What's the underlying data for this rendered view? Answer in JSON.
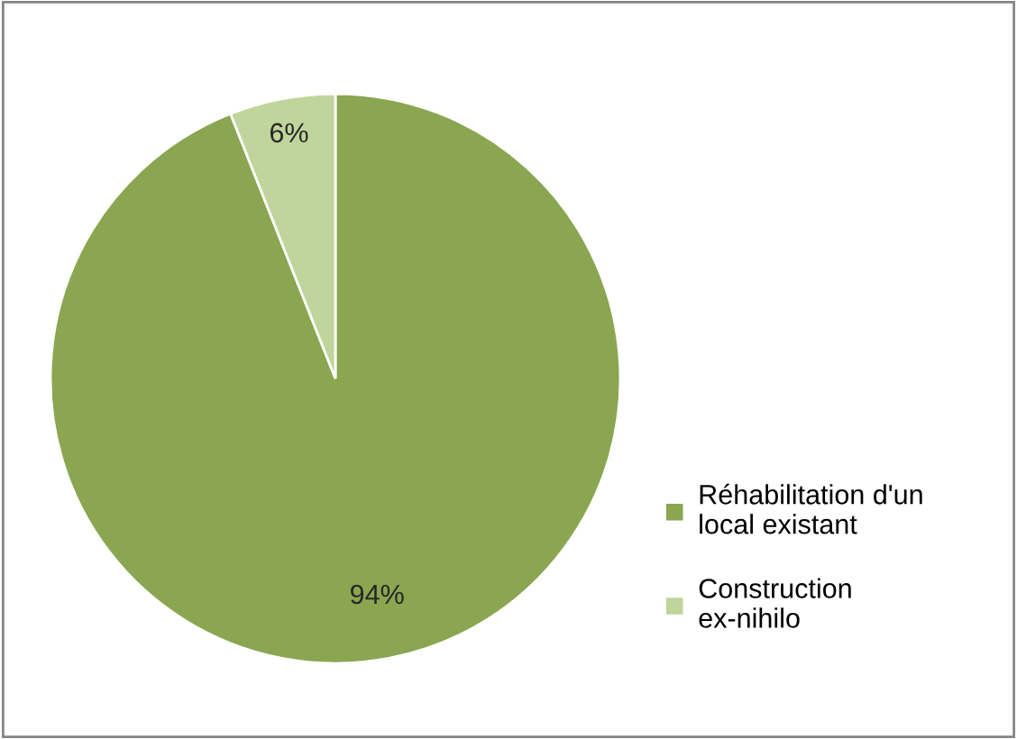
{
  "chart_data": {
    "type": "pie",
    "categories": [
      "Réhabilitation d'un local existant",
      "Construction ex-nihilo"
    ],
    "values": [
      94,
      6
    ],
    "colors": [
      "#8aa650",
      "#c0d59b"
    ],
    "value_labels": [
      "94%",
      "6%"
    ],
    "legend": "right"
  }
}
